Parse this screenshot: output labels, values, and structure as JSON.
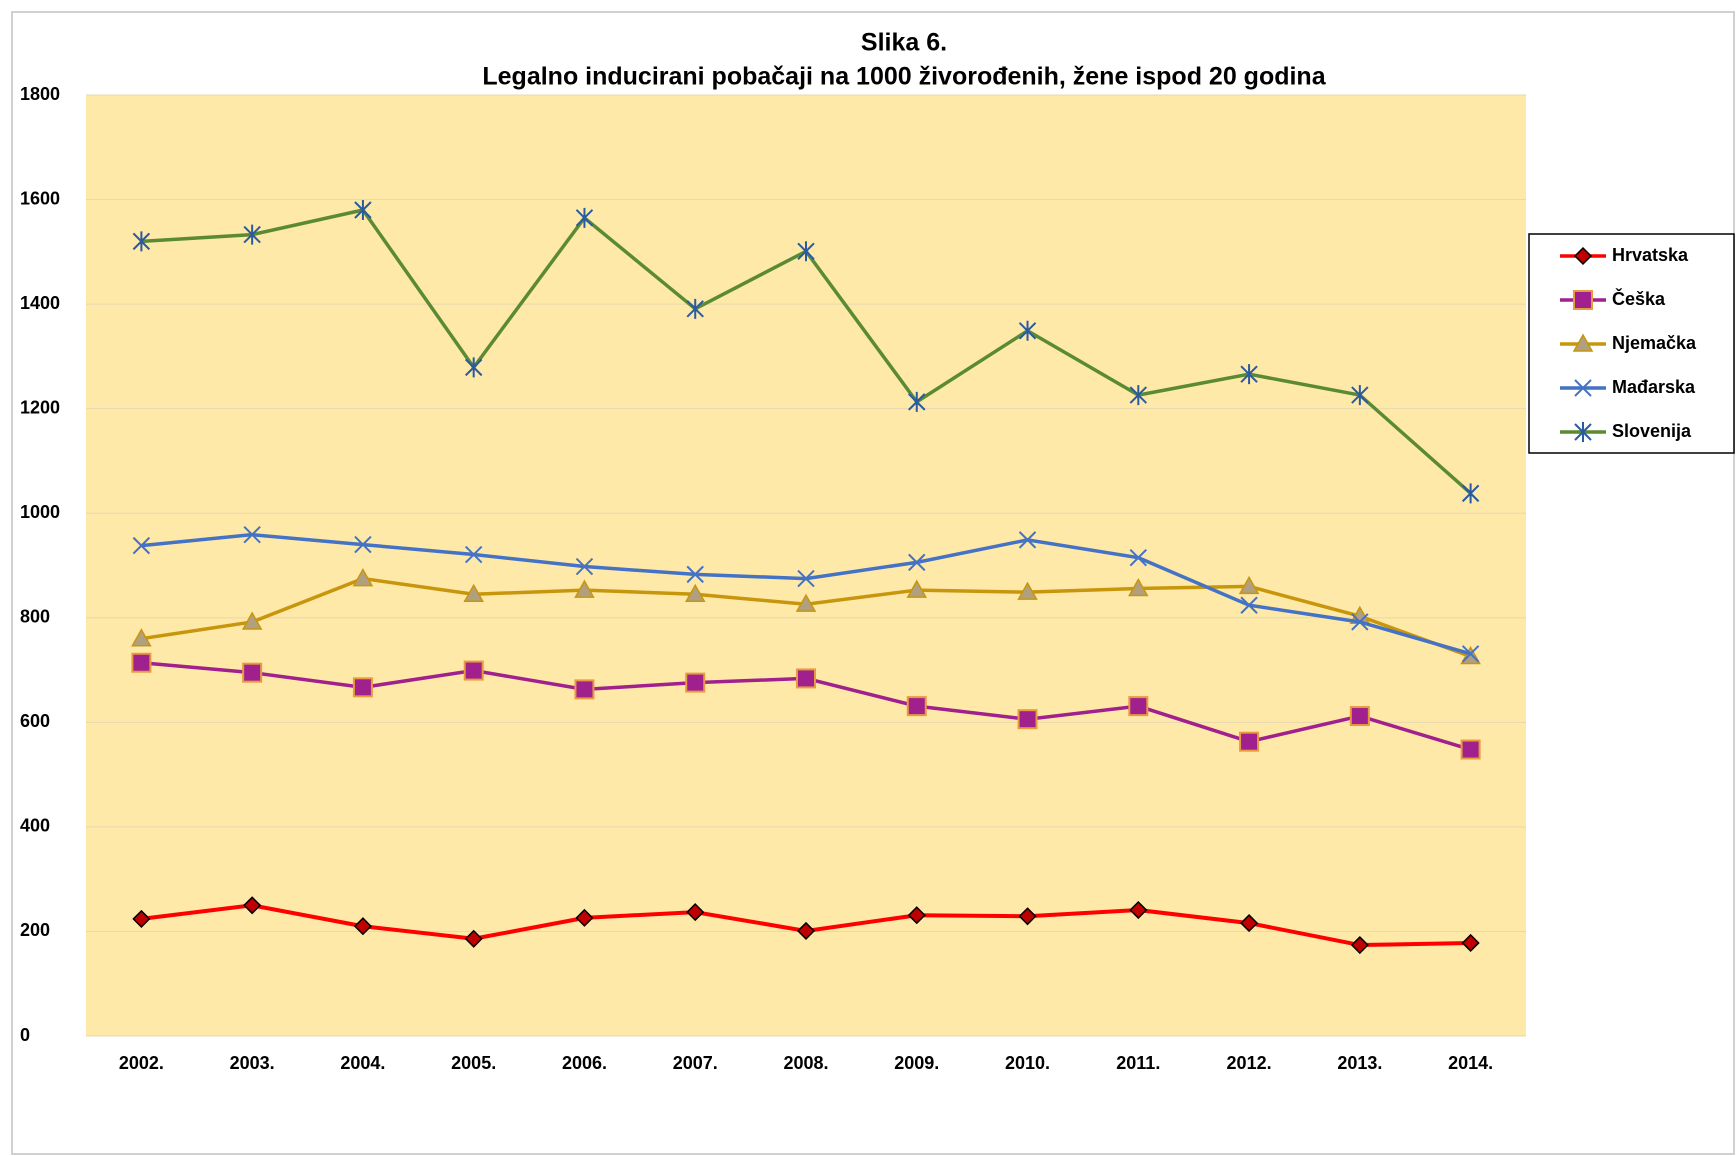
{
  "chart_data": {
    "type": "line",
    "title": "Slika 6.",
    "subtitle": "Legalno inducirani pobačaji na 1000 živorođenih, žene ispod 20 godina",
    "categories": [
      "2002.",
      "2003.",
      "2004.",
      "2005.",
      "2006.",
      "2007.",
      "2008.",
      "2009.",
      "2010.",
      "2011.",
      "2012.",
      "2013.",
      "2014."
    ],
    "series": [
      {
        "name": "Hrvatska",
        "color": "#ff0000",
        "marker": "diamond",
        "values": [
          224,
          250,
          210,
          186,
          226,
          237,
          201,
          231,
          229,
          241,
          216,
          174,
          178
        ]
      },
      {
        "name": "Češka",
        "color": "#a0208e",
        "marker": "square",
        "values": [
          714,
          695,
          667,
          699,
          663,
          676,
          684,
          631,
          606,
          631,
          563,
          612,
          548
        ]
      },
      {
        "name": "Njemačka",
        "color": "#c8960c",
        "marker": "triangle",
        "values": [
          760,
          792,
          875,
          845,
          853,
          845,
          826,
          853,
          849,
          856,
          860,
          803,
          726
        ]
      },
      {
        "name": "Mađarska",
        "color": "#4472c4",
        "marker": "x",
        "values": [
          938,
          959,
          940,
          921,
          898,
          883,
          875,
          906,
          949,
          915,
          824,
          792,
          731
        ]
      },
      {
        "name": "Slovenija",
        "color": "#5b8a35",
        "marker": "star",
        "values": [
          1520,
          1533,
          1580,
          1279,
          1565,
          1391,
          1501,
          1213,
          1349,
          1226,
          1266,
          1226,
          1038
        ]
      }
    ],
    "ylim": [
      0,
      1800
    ],
    "yticks": [
      0,
      200,
      400,
      600,
      800,
      1000,
      1200,
      1400,
      1600,
      1800
    ],
    "grid": true,
    "legend": "right"
  }
}
